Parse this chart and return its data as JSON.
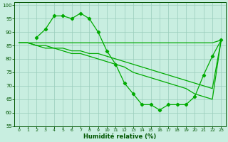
{
  "line1": {
    "x": [
      0,
      1,
      2,
      3,
      4,
      5,
      6,
      7,
      8,
      9,
      10,
      11,
      12,
      13,
      14,
      15,
      16,
      17,
      18,
      19,
      20,
      21,
      22,
      23
    ],
    "y": [
      86,
      86,
      86,
      86,
      86,
      86,
      86,
      86,
      86,
      86,
      86,
      86,
      86,
      86,
      86,
      86,
      86,
      86,
      86,
      86,
      86,
      86,
      86,
      87
    ],
    "color": "#00aa00",
    "lw": 0.9
  },
  "line2": {
    "x": [
      0,
      1,
      2,
      3,
      4,
      5,
      6,
      7,
      8,
      9,
      10,
      11,
      12,
      13,
      14,
      15,
      16,
      17,
      18,
      19,
      20,
      21,
      22,
      23
    ],
    "y": [
      86,
      86,
      85,
      85,
      84,
      84,
      83,
      83,
      82,
      82,
      81,
      80,
      79,
      78,
      77,
      76,
      75,
      74,
      73,
      72,
      71,
      70,
      69,
      87
    ],
    "color": "#00aa00",
    "lw": 0.9
  },
  "line3": {
    "x": [
      2,
      3,
      4,
      5,
      6,
      7,
      8,
      9,
      10,
      11,
      12,
      13,
      14,
      15,
      16,
      17,
      18,
      19,
      20,
      21,
      22,
      23
    ],
    "y": [
      88,
      91,
      96,
      96,
      95,
      97,
      95,
      90,
      83,
      78,
      71,
      67,
      63,
      63,
      61,
      63,
      63,
      63,
      66,
      74,
      81,
      87
    ],
    "color": "#00aa00",
    "lw": 0.9,
    "marker": "D",
    "ms": 2.2
  },
  "line4": {
    "x": [
      0,
      1,
      2,
      3,
      4,
      5,
      6,
      7,
      8,
      9,
      10,
      11,
      12,
      13,
      14,
      15,
      16,
      17,
      18,
      19,
      20,
      21,
      22,
      23
    ],
    "y": [
      86,
      86,
      85,
      84,
      84,
      83,
      82,
      82,
      81,
      80,
      79,
      78,
      77,
      75,
      74,
      73,
      72,
      71,
      70,
      69,
      67,
      66,
      65,
      87
    ],
    "color": "#00aa00",
    "lw": 0.9
  },
  "xlabel": "Humidité relative (%)",
  "xlabel_color": "#005500",
  "bg_color": "#c8eee0",
  "grid_color": "#99ccbb",
  "axis_color": "#005500",
  "tick_color": "#005500",
  "ylim": [
    55,
    101
  ],
  "xlim": [
    -0.5,
    23.5
  ],
  "yticks": [
    55,
    60,
    65,
    70,
    75,
    80,
    85,
    90,
    95,
    100
  ],
  "xticks": [
    0,
    1,
    2,
    3,
    4,
    5,
    6,
    7,
    8,
    9,
    10,
    11,
    12,
    13,
    14,
    15,
    16,
    17,
    18,
    19,
    20,
    21,
    22,
    23
  ]
}
